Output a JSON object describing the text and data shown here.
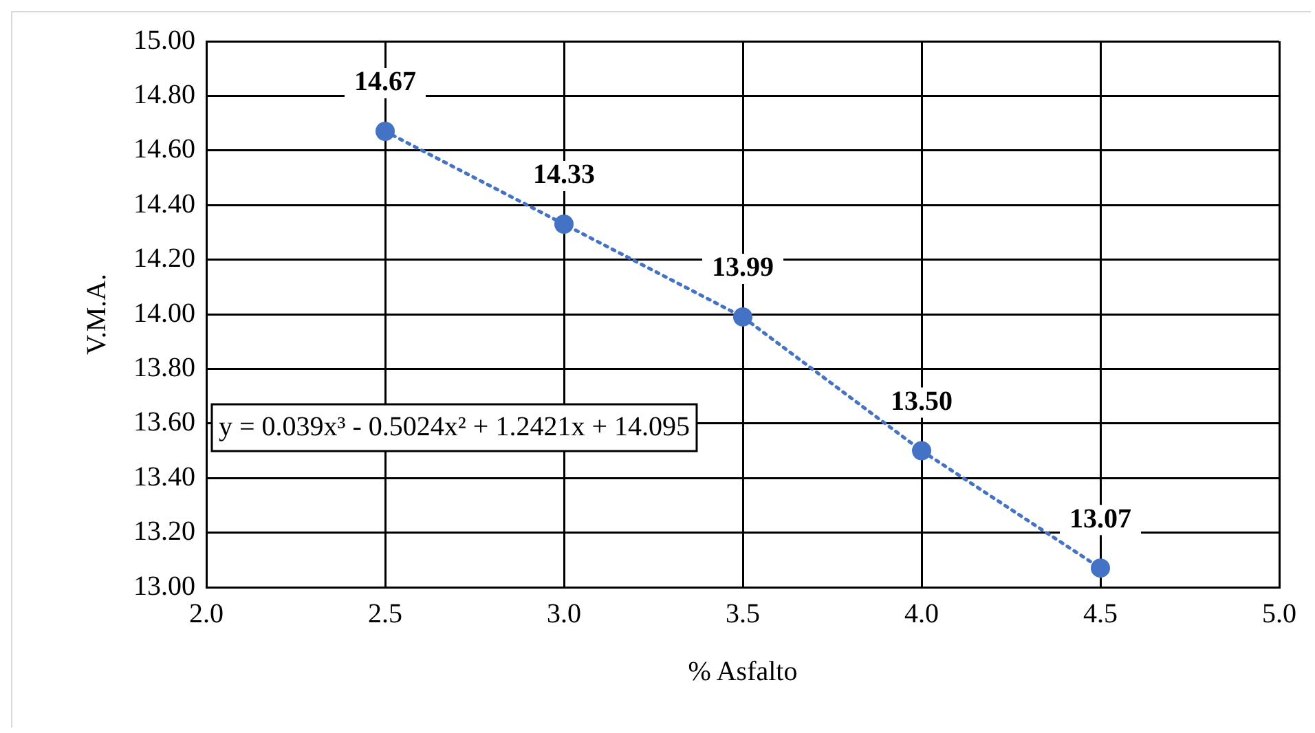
{
  "chart_data": {
    "type": "scatter",
    "xlabel": "% Asfalto",
    "ylabel": "V.M.A.",
    "x": [
      2.5,
      3.0,
      3.5,
      4.0,
      4.5
    ],
    "series": [
      {
        "color": "#4472c4",
        "values": [
          14.67,
          14.33,
          13.99,
          13.5,
          13.07
        ],
        "value_labels": [
          "14.67",
          "14.33",
          "13.99",
          "13.50",
          "13.07"
        ],
        "marker": "circle"
      },
      {
        "type": "line",
        "color": "#4472c4",
        "x": [
          2.5,
          3.0,
          3.5,
          4.0,
          4.5
        ],
        "values": [
          14.67,
          14.33,
          13.99,
          13.5,
          13.07
        ],
        "line_style": "dotted",
        "marker": "none"
      }
    ],
    "xlim": [
      2.0,
      5.0
    ],
    "xticks": [
      {
        "value": 2.0,
        "label": "2.0"
      },
      {
        "value": 2.5,
        "label": "2.5"
      },
      {
        "value": 3.0,
        "label": "3.0"
      },
      {
        "value": 3.5,
        "label": "3.5"
      },
      {
        "value": 4.0,
        "label": "4.0"
      },
      {
        "value": 4.5,
        "label": "4.5"
      },
      {
        "value": 5.0,
        "label": "5.0"
      }
    ],
    "ylim": [
      13.0,
      15.0
    ],
    "yticks": [
      {
        "value": 13.0,
        "label": "13.00"
      },
      {
        "value": 13.2,
        "label": "13.20"
      },
      {
        "value": 13.4,
        "label": "13.40"
      },
      {
        "value": 13.6,
        "label": "13.60"
      },
      {
        "value": 13.8,
        "label": "13.80"
      },
      {
        "value": 14.0,
        "label": "14.00"
      },
      {
        "value": 14.2,
        "label": "14.20"
      },
      {
        "value": 14.4,
        "label": "14.40"
      },
      {
        "value": 14.6,
        "label": "14.60"
      },
      {
        "value": 14.8,
        "label": "14.80"
      },
      {
        "value": 15.0,
        "label": "15.00"
      }
    ],
    "annotations": [
      "y = 0.039x³ - 0.5024x² + 1.2421x + 14.095"
    ],
    "grid": true,
    "legend": false
  }
}
